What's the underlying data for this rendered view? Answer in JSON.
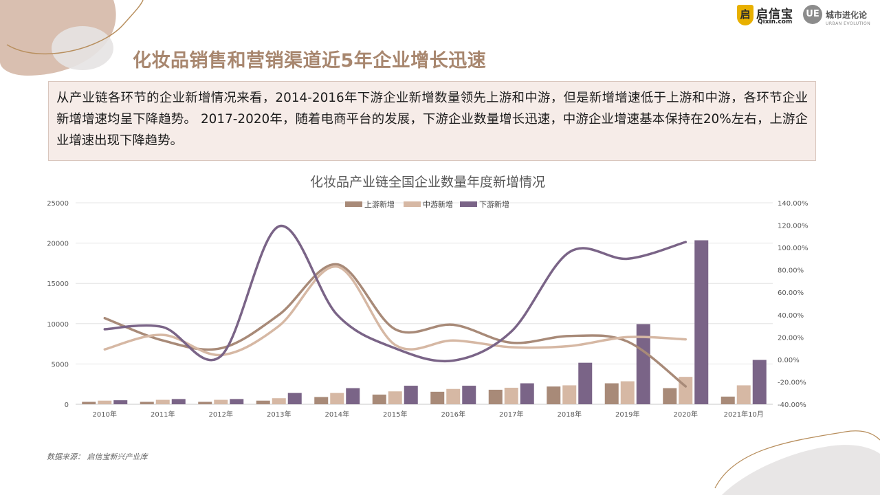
{
  "page": {
    "title": "化妆品销售和营销渠道近5年企业增长迅速",
    "summary": "从产业链各环节的企业新增情况来看，2014-2016年下游企业新增数量领先上游和中游，但是新增增速低于上游和中游，各环节企业新增增速均呈下降趋势。 2017-2020年，随着电商平台的发展，下游企业数量增长迅速，中游企业增速基本保持在20%左右，上游企业增速出现下降趋势。",
    "source": "数据来源： 启信宝新兴产业库"
  },
  "logos": {
    "qixin": {
      "mark": "启",
      "name": "启信宝",
      "sub": "Qixin.com"
    },
    "ue": {
      "mark": "UE",
      "name": "城市进化论",
      "sub": "URBAN EVOLUTION"
    }
  },
  "colors": {
    "upstream": "#a88a78",
    "midstream": "#d6b8a4",
    "downstream": "#7a6487",
    "title_color": "#a8876f",
    "accent_blob": "#d9bfb0"
  },
  "chart_data": {
    "type": "bar+line",
    "title": "化妆品产业链全国企业数量年度新增情况",
    "categories": [
      "2010年",
      "2011年",
      "2012年",
      "2013年",
      "2014年",
      "2015年",
      "2016年",
      "2017年",
      "2018年",
      "2019年",
      "2020年",
      "2021年10月"
    ],
    "legend": [
      "上游新增",
      "中游新增",
      "下游新增"
    ],
    "legend_position": "top-center",
    "left_axis": {
      "min": 0,
      "max": 25000,
      "ticks": [
        "0",
        "5000",
        "10000",
        "15000",
        "20000",
        "25000"
      ]
    },
    "right_axis": {
      "min": -0.4,
      "max": 1.4,
      "ticks": [
        "-40.00%",
        "-20.00%",
        "0.00%",
        "20.00%",
        "40.00%",
        "60.00%",
        "80.00%",
        "100.00%",
        "120.00%",
        "140.00%"
      ]
    },
    "grid": true,
    "bar_series": [
      {
        "name": "上游新增",
        "values": [
          300,
          300,
          300,
          450,
          900,
          1200,
          1550,
          1800,
          2200,
          2600,
          2000,
          950
        ]
      },
      {
        "name": "中游新增",
        "values": [
          450,
          550,
          550,
          750,
          1400,
          1600,
          1900,
          2050,
          2350,
          2850,
          3400,
          2350
        ]
      },
      {
        "name": "下游新增",
        "values": [
          500,
          650,
          650,
          1400,
          2000,
          2300,
          2300,
          2600,
          5150,
          9950,
          20350,
          5500
        ]
      }
    ],
    "line_series": [
      {
        "name": "上游新增",
        "values": [
          0.37,
          0.17,
          0.1,
          0.4,
          0.85,
          0.27,
          0.31,
          0.15,
          0.21,
          0.16,
          -0.24
        ]
      },
      {
        "name": "中游新增",
        "values": [
          0.09,
          0.22,
          0.04,
          0.3,
          0.83,
          0.13,
          0.17,
          0.11,
          0.12,
          0.2,
          0.18
        ]
      },
      {
        "name": "下游新增",
        "values": [
          0.27,
          0.29,
          0.03,
          1.19,
          0.4,
          0.1,
          -0.01,
          0.25,
          0.96,
          0.9,
          1.05
        ]
      }
    ]
  }
}
